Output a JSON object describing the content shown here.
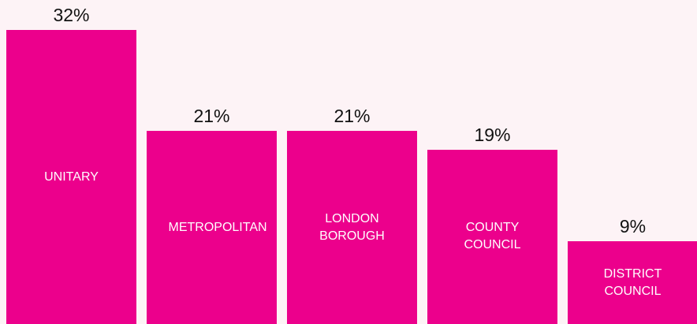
{
  "chart_data": {
    "type": "bar",
    "categories": [
      "UNITARY",
      "METROPOLITAN",
      "LONDON BOROUGH",
      "COUNTY COUNCIL",
      "DISTRICT COUNCIL"
    ],
    "values": [
      32,
      21,
      21,
      19,
      9
    ],
    "value_labels": [
      "32%",
      "21%",
      "21%",
      "19%",
      "9%"
    ],
    "color": "#ec008c"
  }
}
